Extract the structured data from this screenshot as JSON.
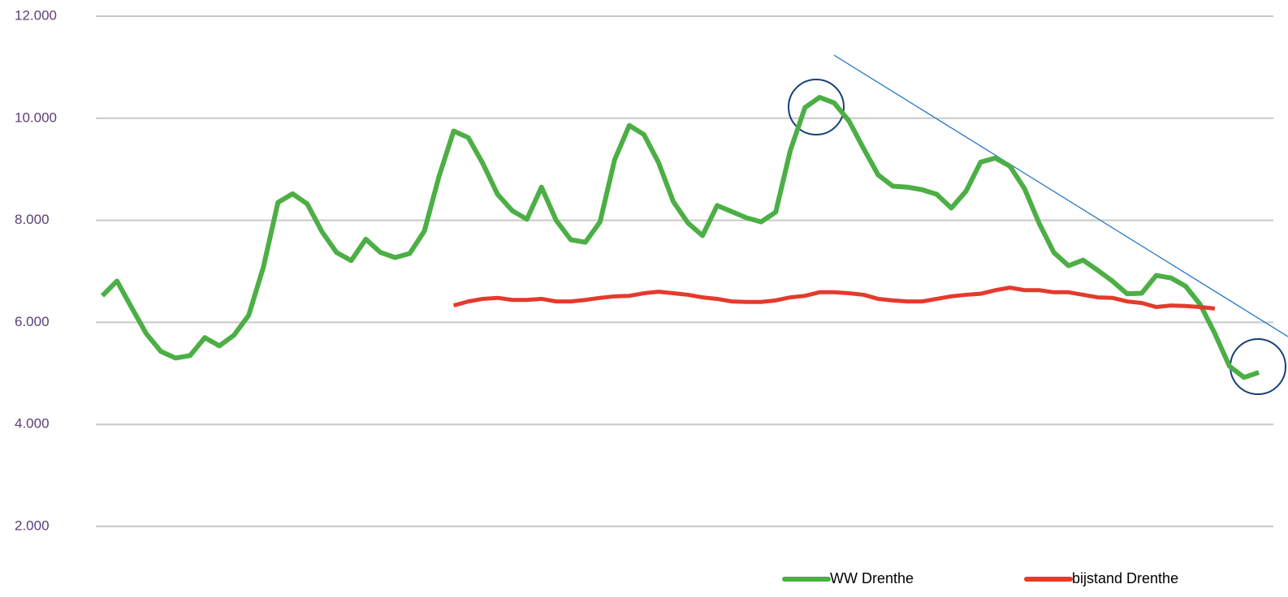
{
  "chart_data": {
    "type": "line",
    "categories": [
      null,
      null,
      null,
      null,
      null,
      null,
      null,
      null,
      null,
      null,
      null,
      null,
      null,
      null,
      null,
      null,
      null,
      null,
      null,
      null,
      null,
      null,
      null,
      null,
      null,
      null,
      null,
      null,
      null,
      null,
      null,
      null,
      null,
      null,
      null,
      null,
      null,
      null,
      null,
      null,
      null,
      null,
      null,
      null,
      null,
      null,
      null,
      null,
      null,
      null,
      null,
      null,
      null,
      null,
      null,
      null,
      null,
      null,
      null,
      null,
      null,
      null,
      null,
      null,
      null,
      null,
      null,
      null,
      null,
      null,
      null,
      null,
      null,
      null,
      null,
      null,
      null,
      null,
      null,
      null
    ],
    "series": [
      {
        "name": "WW Drenthe",
        "color": "#4caf45",
        "values": [
          6520,
          6810,
          6290,
          5780,
          5430,
          5300,
          5350,
          5700,
          5540,
          5750,
          6140,
          7080,
          8350,
          8520,
          8320,
          7780,
          7370,
          7210,
          7630,
          7370,
          7270,
          7350,
          7790,
          8860,
          9750,
          9620,
          9110,
          8510,
          8190,
          8020,
          8650,
          8000,
          7620,
          7570,
          7970,
          9190,
          9860,
          9680,
          9130,
          8370,
          7950,
          7700,
          8290,
          8170,
          8050,
          7970,
          8160,
          9370,
          10210,
          10410,
          10300,
          9950,
          9410,
          8890,
          8670,
          8650,
          8600,
          8510,
          8240,
          8570,
          9140,
          9220,
          9060,
          8620,
          7940,
          7370,
          7110,
          7220,
          7020,
          6810,
          6560,
          6570,
          6920,
          6870,
          6710,
          6350,
          5780,
          5140,
          4920,
          5020
        ]
      },
      {
        "name": "bijstand Drenthe",
        "color": "#e53a2c",
        "values": [
          null,
          null,
          null,
          null,
          null,
          null,
          null,
          null,
          null,
          null,
          null,
          null,
          null,
          null,
          null,
          null,
          null,
          null,
          null,
          null,
          null,
          null,
          null,
          null,
          6330,
          6410,
          6460,
          6480,
          6440,
          6440,
          6460,
          6410,
          6410,
          6440,
          6480,
          6510,
          6520,
          6570,
          6600,
          6570,
          6540,
          6490,
          6460,
          6410,
          6400,
          6400,
          6430,
          6490,
          6520,
          6590,
          6590,
          6570,
          6540,
          6460,
          6430,
          6410,
          6410,
          6460,
          6510,
          6540,
          6560,
          6630,
          6680,
          6630,
          6630,
          6590,
          6590,
          6540,
          6490,
          6480,
          6410,
          6380,
          6300,
          6330,
          6320,
          6300,
          6270,
          null,
          null,
          null
        ]
      }
    ],
    "ylim": [
      2000,
      12000
    ],
    "yticks": [
      {
        "value": 2000,
        "label": "2.000"
      },
      {
        "value": 4000,
        "label": "4.000"
      },
      {
        "value": 6000,
        "label": "6.000"
      },
      {
        "value": 8000,
        "label": "8.000"
      },
      {
        "value": 10000,
        "label": "10.000"
      },
      {
        "value": 12000,
        "label": "12.000"
      }
    ],
    "grid": true,
    "legend": "bottom"
  }
}
